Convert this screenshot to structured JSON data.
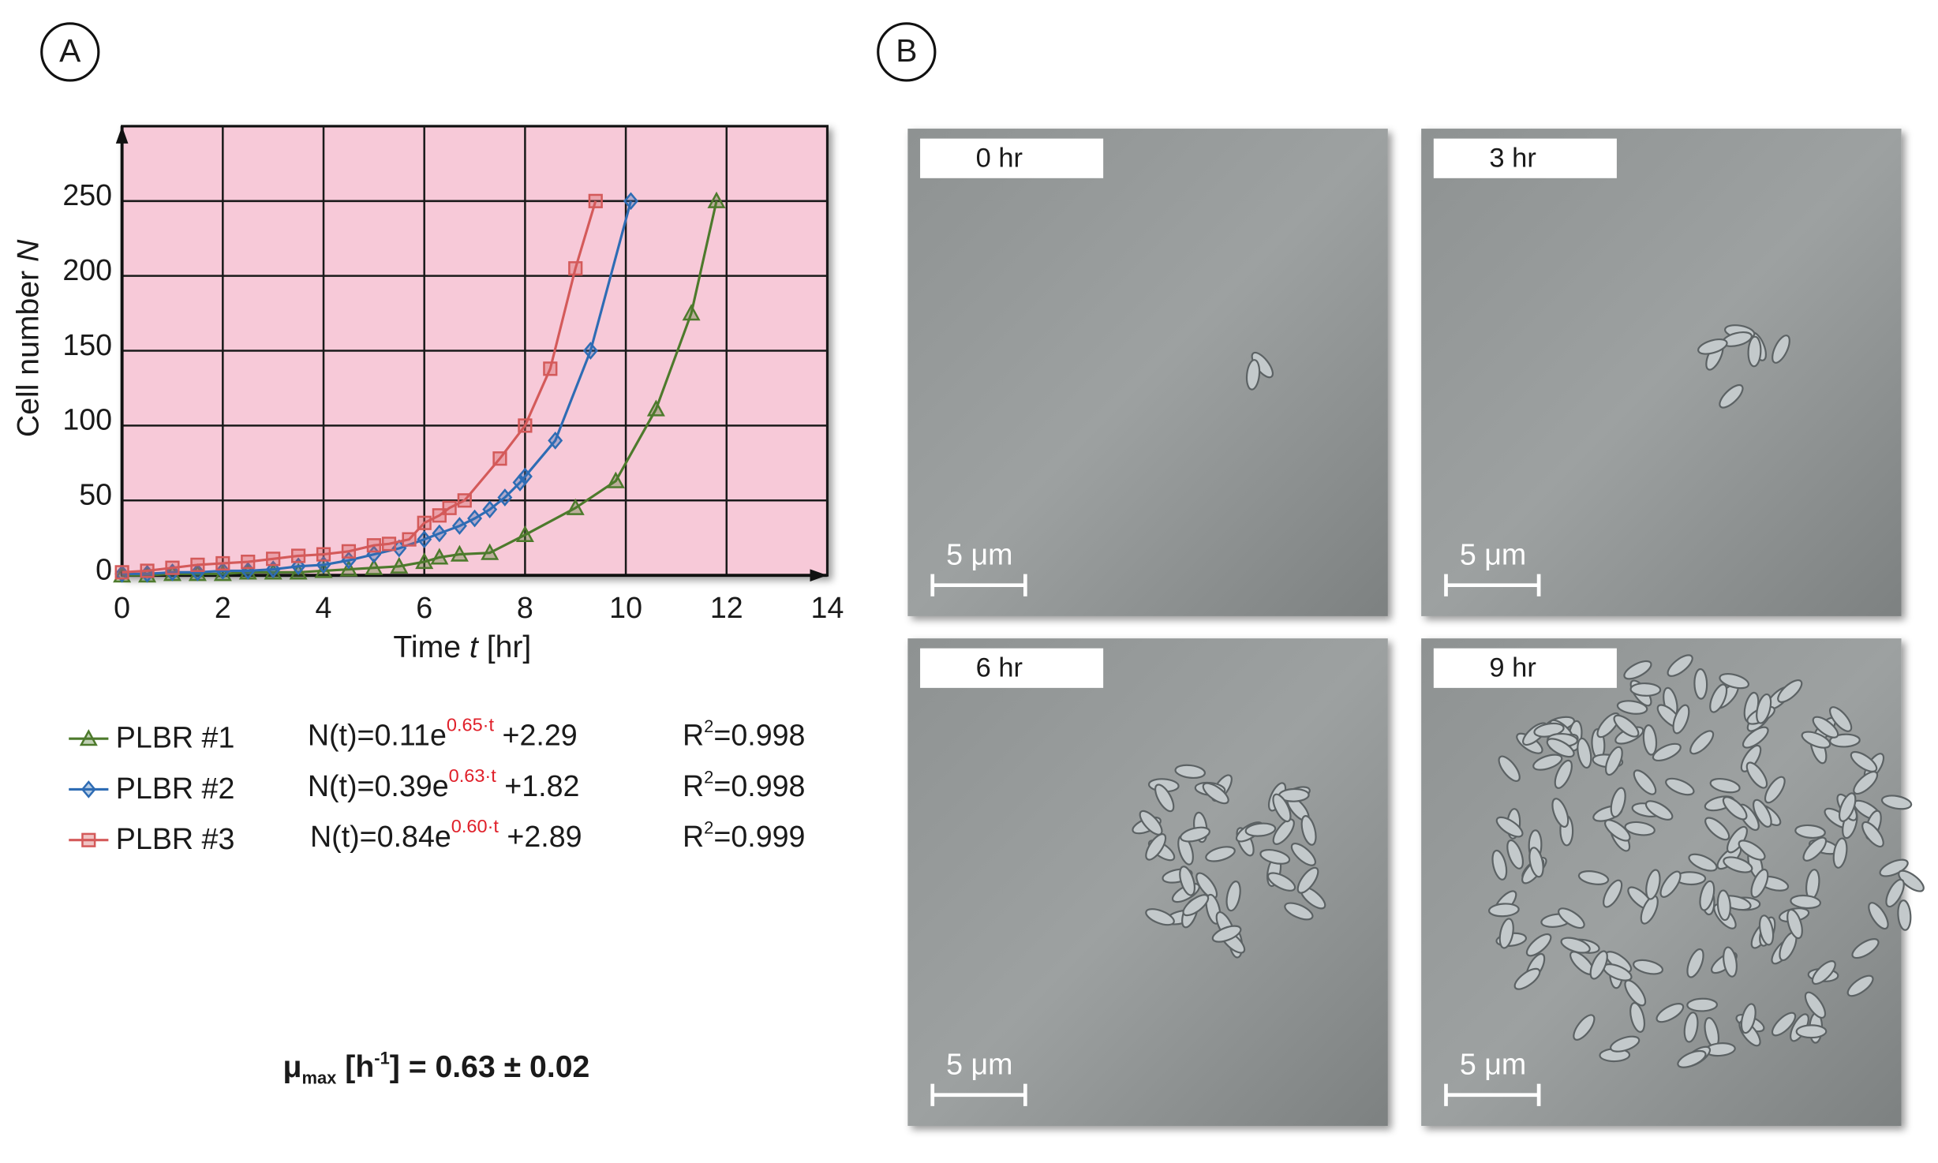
{
  "panels": {
    "a": "A",
    "b": "B"
  },
  "chart_data": {
    "type": "line",
    "xlabel": {
      "text": "Time ",
      "italic": "t",
      "unit": " [hr]"
    },
    "ylabel": {
      "text": "Cell number ",
      "italic": "N"
    },
    "xlim": [
      0,
      14
    ],
    "xticks": [
      0,
      2,
      4,
      6,
      8,
      10,
      12,
      14
    ],
    "ylim": [
      0,
      300
    ],
    "yticks": [
      0,
      50,
      100,
      150,
      200,
      250
    ],
    "grid": true,
    "background": "#f7c9d8",
    "series": [
      {
        "name": "PLBR #1",
        "color": "#4d7a2c",
        "marker": "triangle",
        "x": [
          0,
          0.5,
          1,
          1.5,
          2,
          2.5,
          3,
          3.5,
          4,
          4.5,
          5,
          5.5,
          6,
          6.3,
          6.7,
          7.3,
          8,
          9,
          9.8,
          10.6,
          11.3,
          11.8
        ],
        "values": [
          0,
          0,
          1,
          1,
          1,
          2,
          2,
          2,
          3,
          4,
          5,
          6,
          9,
          12,
          14,
          15,
          27,
          45,
          63,
          111,
          175,
          250
        ]
      },
      {
        "name": "PLBR #2",
        "color": "#2e6cb4",
        "marker": "diamond",
        "x": [
          0,
          0.5,
          1,
          1.5,
          2,
          2.5,
          3,
          3.5,
          4,
          4.5,
          5,
          5.5,
          6,
          6.3,
          6.7,
          7,
          7.3,
          7.6,
          7.9,
          8,
          8.6,
          9.3,
          10.1
        ],
        "values": [
          1,
          1,
          2,
          2,
          3,
          3,
          4,
          6,
          7,
          10,
          14,
          18,
          24,
          28,
          33,
          38,
          44,
          52,
          62,
          66,
          90,
          150,
          250
        ]
      },
      {
        "name": "PLBR #3",
        "color": "#d45a5a",
        "marker": "square",
        "x": [
          0,
          0.5,
          1,
          1.5,
          2,
          2.5,
          3,
          3.5,
          4,
          4.5,
          5,
          5.3,
          5.7,
          6,
          6.3,
          6.5,
          6.8,
          7.5,
          8,
          8.5,
          9,
          9.4
        ],
        "values": [
          2,
          3,
          5,
          7,
          8,
          9,
          11,
          13,
          14,
          16,
          20,
          21,
          24,
          35,
          40,
          45,
          50,
          78,
          100,
          138,
          205,
          250
        ]
      }
    ]
  },
  "fit_equations": [
    {
      "main": "N(t)=0.11e",
      "exp": "0.65·t",
      "tail": " +2.29",
      "r": "R",
      "r_sup": "2",
      "r_val": "=0.998"
    },
    {
      "main": "N(t)=0.39e",
      "exp": "0.63·t",
      "tail": " +1.82",
      "r": "R",
      "r_sup": "2",
      "r_val": "=0.998"
    },
    {
      "main": "N(t)=0.84e",
      "exp": "0.60·t",
      "tail": " +2.89",
      "r": "R",
      "r_sup": "2",
      "r_val": "=0.999"
    }
  ],
  "growth_rate": {
    "mu": "μ",
    "sub": "max",
    "unit": " [h",
    "unit_sup": "-1",
    "rest": "] = 0.63 ± 0.02"
  },
  "micrographs": [
    {
      "time": "0 hr",
      "scale": "5 μm"
    },
    {
      "time": "3 hr",
      "scale": "5 μm"
    },
    {
      "time": "6 hr",
      "scale": "5 μm"
    },
    {
      "time": "9 hr",
      "scale": "5 μm"
    }
  ]
}
